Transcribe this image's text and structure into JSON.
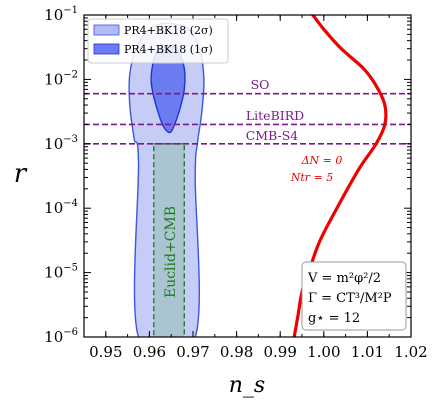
{
  "chart_data": {
    "type": "line",
    "xlabel": "n_s",
    "ylabel": "r",
    "xlim": [
      0.945,
      1.02
    ],
    "ylim": [
      1e-06,
      0.1
    ],
    "yscale": "log",
    "xticks": [
      "0.95",
      "0.96",
      "0.97",
      "0.98",
      "0.99",
      "1.00",
      "1.01",
      "1.02"
    ],
    "xtick_values": [
      0.95,
      0.96,
      0.97,
      0.98,
      0.99,
      1.0,
      1.01,
      1.02
    ],
    "yticks": [
      "10−6",
      "10−5",
      "10−4",
      "10−3",
      "10−2",
      "10−1"
    ],
    "ytick_values": [
      1e-06,
      1e-05,
      0.0001,
      0.001,
      0.01,
      0.1
    ],
    "legend": {
      "placement": "top-left",
      "entries": [
        {
          "label": "PR4+BK18 (2σ)",
          "color": "#b3b9f5"
        },
        {
          "label": "PR4+BK18 (1σ)",
          "color": "#6b7cf0"
        }
      ]
    },
    "contour_2sigma": {
      "color_fill": "#c5cdf7",
      "color_edge": "#3d55e0",
      "points": [
        [
          0.9575,
          1e-06
        ],
        [
          0.9575,
          0.0005
        ],
        [
          0.9565,
          0.0012
        ],
        [
          0.9555,
          0.004
        ],
        [
          0.9555,
          0.012
        ],
        [
          0.957,
          0.03
        ],
        [
          0.96,
          0.06
        ],
        [
          0.964,
          0.075
        ],
        [
          0.969,
          0.06
        ],
        [
          0.9715,
          0.03
        ],
        [
          0.9725,
          0.01
        ],
        [
          0.972,
          0.003
        ],
        [
          0.971,
          0.001
        ],
        [
          0.9705,
          0.0003
        ],
        [
          0.9705,
          1e-06
        ]
      ]
    },
    "contour_1sigma": {
      "color_fill": "#6b7cf0",
      "color_edge": "#2233cc",
      "points": [
        [
          0.9605,
          0.013
        ],
        [
          0.9615,
          0.025
        ],
        [
          0.964,
          0.032
        ],
        [
          0.9665,
          0.028
        ],
        [
          0.968,
          0.015
        ],
        [
          0.968,
          0.007
        ],
        [
          0.967,
          0.0035
        ],
        [
          0.9655,
          0.0018
        ],
        [
          0.9645,
          0.0015
        ],
        [
          0.963,
          0.002
        ],
        [
          0.9615,
          0.004
        ],
        [
          0.9605,
          0.008
        ]
      ]
    },
    "euclid_box": {
      "label": "Euclid+CMB",
      "x": [
        0.961,
        0.968
      ],
      "y": [
        1e-06,
        0.001
      ],
      "color_fill": "#a9c3cf",
      "color_edge": "#1a7a1a"
    },
    "hlines": [
      {
        "label": "SO",
        "r": 0.006,
        "color": "#7a1a8c"
      },
      {
        "label": "LiteBIRD",
        "r": 0.002,
        "color": "#7a1a8c"
      },
      {
        "label": "CMB-S4",
        "r": 0.001,
        "color": "#7a1a8c"
      }
    ],
    "series": [
      {
        "color": "#ee0000",
        "x": [
          0.9975,
          1.0,
          1.004,
          1.009,
          1.012,
          1.014,
          1.014,
          1.012,
          1.008,
          1.003,
          0.999,
          0.9965,
          0.995,
          0.994,
          0.9932
        ],
        "y": [
          0.1,
          0.06,
          0.03,
          0.015,
          0.008,
          0.004,
          0.002,
          0.001,
          0.0004,
          0.0001,
          3e-05,
          1e-05,
          5e-06,
          2e-06,
          1e-06
        ]
      }
    ],
    "annotations": {
      "delta_n": "ΔN = 0",
      "n_tr": "Ntr = 5",
      "model_box": [
        "V = m²φ²/2",
        "Γ = CT³/M²P",
        "g⋆ = 12"
      ]
    }
  }
}
